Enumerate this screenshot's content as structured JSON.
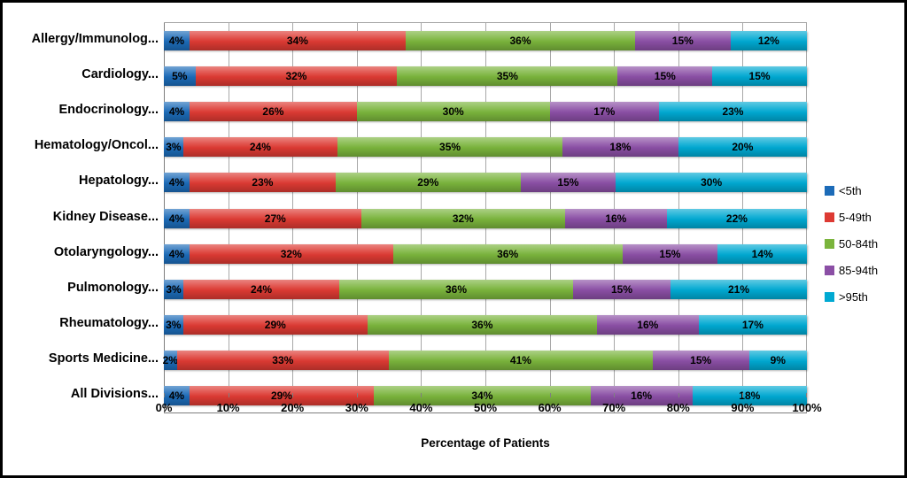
{
  "chart": {
    "background_color": "#ffffff",
    "frame_color": "#000000",
    "gridline_color": "#a8a8a8",
    "axis_color": "#7f7f7f",
    "text_color": "#000000"
  },
  "chart_data": {
    "type": "bar",
    "orientation": "horizontal-stacked",
    "title": "",
    "xlabel": "Percentage of Patients",
    "ylabel": "",
    "xlim": [
      0,
      100
    ],
    "grid": true,
    "legend_position": "right",
    "value_label_format": "{value}%",
    "x_ticks": [
      "0%",
      "10%",
      "20%",
      "30%",
      "40%",
      "50%",
      "60%",
      "70%",
      "80%",
      "90%",
      "100%"
    ],
    "categories": [
      "Allergy/Immunolog...",
      "Cardiology...",
      "Endocrinology...",
      "Hematology/Oncol...",
      "Hepatology...",
      "Kidney Disease...",
      "Otolaryngology...",
      "Pulmonology...",
      "Rheumatology...",
      "Sports Medicine...",
      "All Divisions..."
    ],
    "series": [
      {
        "name": "<5th",
        "color": "#1c6bb8",
        "values": [
          4,
          5,
          4,
          3,
          4,
          4,
          4,
          3,
          3,
          2,
          4
        ]
      },
      {
        "name": "5-49th",
        "color": "#dd3a33",
        "values": [
          34,
          32,
          26,
          24,
          23,
          27,
          32,
          24,
          29,
          33,
          29
        ]
      },
      {
        "name": "50-84th",
        "color": "#7ab43c",
        "values": [
          36,
          35,
          30,
          35,
          29,
          32,
          36,
          36,
          36,
          41,
          34
        ]
      },
      {
        "name": "85-94th",
        "color": "#8b4fa5",
        "values": [
          15,
          15,
          17,
          18,
          15,
          16,
          15,
          15,
          16,
          15,
          16
        ]
      },
      {
        "name": ">95th",
        "color": "#00a9d2",
        "values": [
          12,
          15,
          23,
          20,
          30,
          22,
          14,
          21,
          17,
          9,
          18
        ]
      }
    ]
  }
}
